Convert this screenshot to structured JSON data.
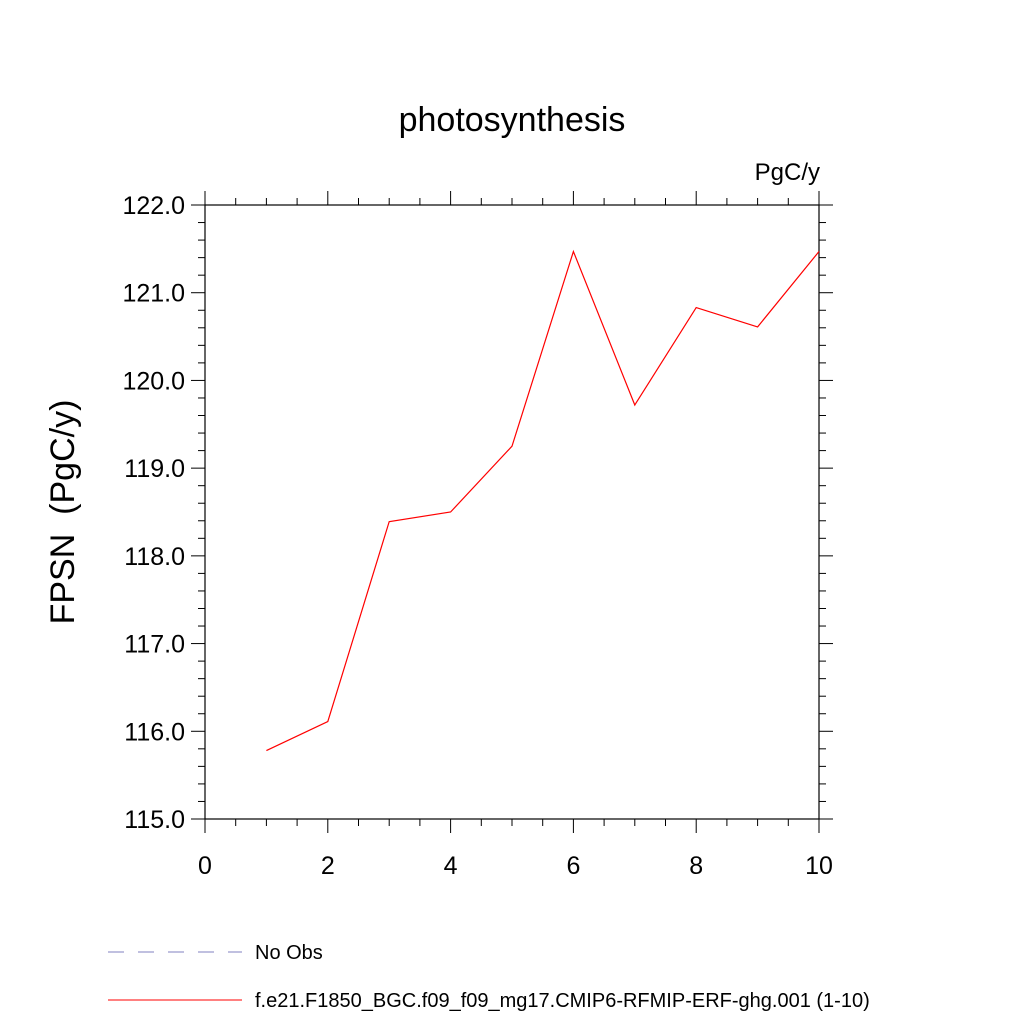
{
  "chart_data": {
    "type": "line",
    "title": "photosynthesis",
    "units_label": "PgC/y",
    "xlabel": "",
    "ylabel": "FPSN  (PgC/y)",
    "xlim": [
      0,
      10
    ],
    "ylim": [
      115.0,
      122.0
    ],
    "x_ticks": [
      0,
      2,
      4,
      6,
      8,
      10
    ],
    "x_tick_labels": [
      "0",
      "2",
      "4",
      "6",
      "8",
      "10"
    ],
    "y_ticks": [
      115.0,
      116.0,
      117.0,
      118.0,
      119.0,
      120.0,
      121.0,
      122.0
    ],
    "y_tick_labels": [
      "115.0",
      "116.0",
      "117.0",
      "118.0",
      "119.0",
      "120.0",
      "121.0",
      "122.0"
    ],
    "grid": false,
    "legend_position": "bottom",
    "series": [
      {
        "name": "f.e21.F1850_BGC.f09_f09_mg17.CMIP6-RFMIP-ERF-ghg.001 (1-10)",
        "color": "#ff0000",
        "x": [
          1,
          2,
          3,
          4,
          5,
          6,
          7,
          8,
          9,
          10
        ],
        "y": [
          115.78,
          116.11,
          118.39,
          118.5,
          119.25,
          121.47,
          119.72,
          120.83,
          120.61,
          121.47
        ]
      }
    ],
    "legend": [
      {
        "label": "No Obs",
        "color": "#8080c0",
        "style": "dashed"
      },
      {
        "label": "f.e21.F1850_BGC.f09_f09_mg17.CMIP6-RFMIP-ERF-ghg.001 (1-10)",
        "color": "#ff0000",
        "style": "solid"
      }
    ]
  }
}
